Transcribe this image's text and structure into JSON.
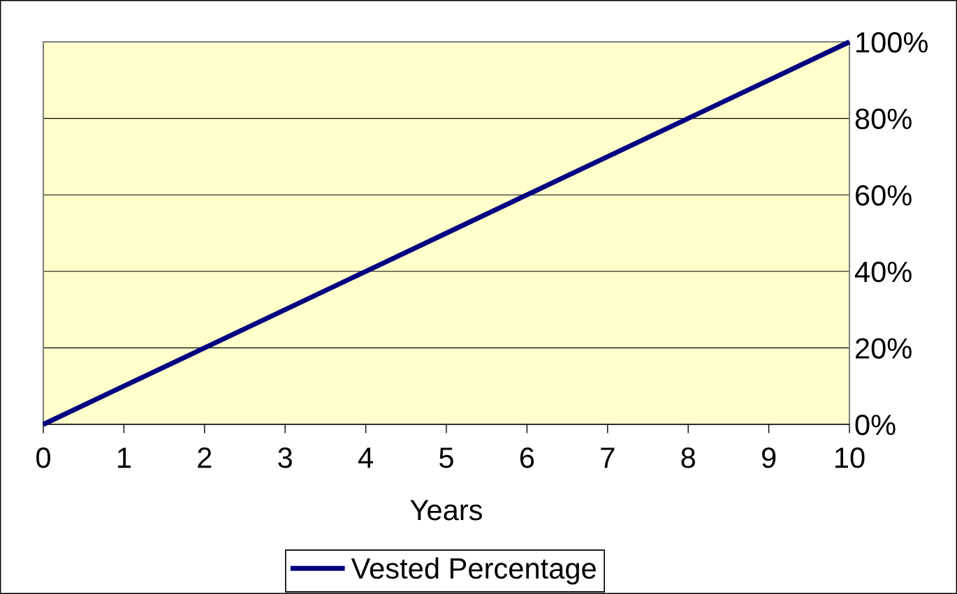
{
  "chart_data": {
    "type": "line",
    "xlabel": "Years",
    "x": [
      0,
      1,
      2,
      3,
      4,
      5,
      6,
      7,
      8,
      9,
      10
    ],
    "series": [
      {
        "name": "Vested Percentage",
        "color": "#000080",
        "values": [
          0,
          10,
          20,
          30,
          40,
          50,
          60,
          70,
          80,
          90,
          100
        ]
      }
    ],
    "xlim": [
      0,
      10
    ],
    "xticks": [
      0,
      1,
      2,
      3,
      4,
      5,
      6,
      7,
      8,
      9,
      10
    ],
    "ylim": [
      0,
      100
    ],
    "yticks": [
      {
        "value": 0,
        "label": "0%"
      },
      {
        "value": 20,
        "label": "20%"
      },
      {
        "value": 40,
        "label": "40%"
      },
      {
        "value": 60,
        "label": "60%"
      },
      {
        "value": 80,
        "label": "80%"
      },
      {
        "value": 100,
        "label": "100%"
      }
    ],
    "grid": "y",
    "legend": "bottom",
    "line_style": "solid"
  }
}
